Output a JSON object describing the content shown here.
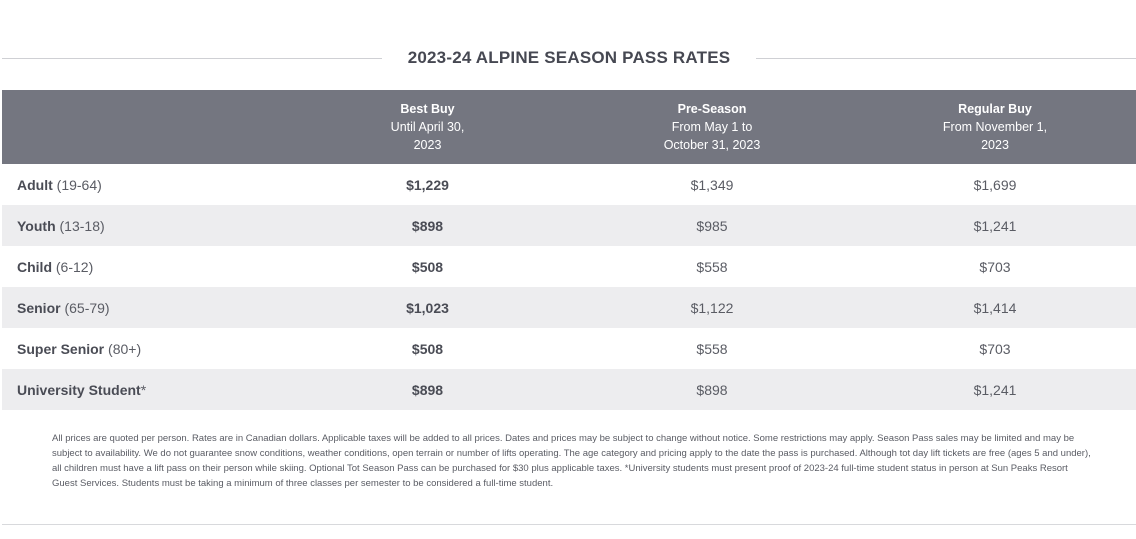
{
  "title": "2023-24 ALPINE SEASON PASS RATES",
  "columns": [
    {
      "name": "Best Buy",
      "line2": "Until April 30,",
      "line3": "2023"
    },
    {
      "name": "Pre-Season",
      "line2": "From May 1 to",
      "line3": "October 31, 2023"
    },
    {
      "name": "Regular Buy",
      "line2": "From November 1,",
      "line3": "2023"
    }
  ],
  "rows": [
    {
      "category": "Adult",
      "age": " (19-64)",
      "best": "$1,229",
      "pre": "$1,349",
      "regular": "$1,699"
    },
    {
      "category": "Youth",
      "age": " (13-18)",
      "best": "$898",
      "pre": "$985",
      "regular": "$1,241"
    },
    {
      "category": "Child",
      "age": " (6-12)",
      "best": "$508",
      "pre": "$558",
      "regular": "$703"
    },
    {
      "category": "Senior",
      "age": " (65-79)",
      "best": "$1,023",
      "pre": "$1,122",
      "regular": "$1,414"
    },
    {
      "category": "Super Senior",
      "age": " (80+)",
      "best": "$508",
      "pre": "$558",
      "regular": "$703"
    },
    {
      "category": "University Student",
      "age": "*",
      "best": "$898",
      "pre": "$898",
      "regular": "$1,241"
    }
  ],
  "footnote": "All prices are quoted per person. Rates are in Canadian dollars. Applicable taxes will be added to all prices. Dates and prices may be subject to change without notice. Some restrictions may apply. Season Pass sales may be limited and may be subject to availability. We do not guarantee snow conditions, weather conditions, open terrain or number of lifts operating. The age category and pricing apply to the date the pass is purchased. Although tot day lift tickets are free (ages 5 and under), all children must have a lift pass on their person while skiing. Optional Tot Season Pass can be purchased for $30 plus applicable taxes. *University students must present proof of 2023-24 full-time student status in person at Sun Peaks Resort Guest Services. Students must be taking a minimum of three classes per semester to be considered a full-time student."
}
